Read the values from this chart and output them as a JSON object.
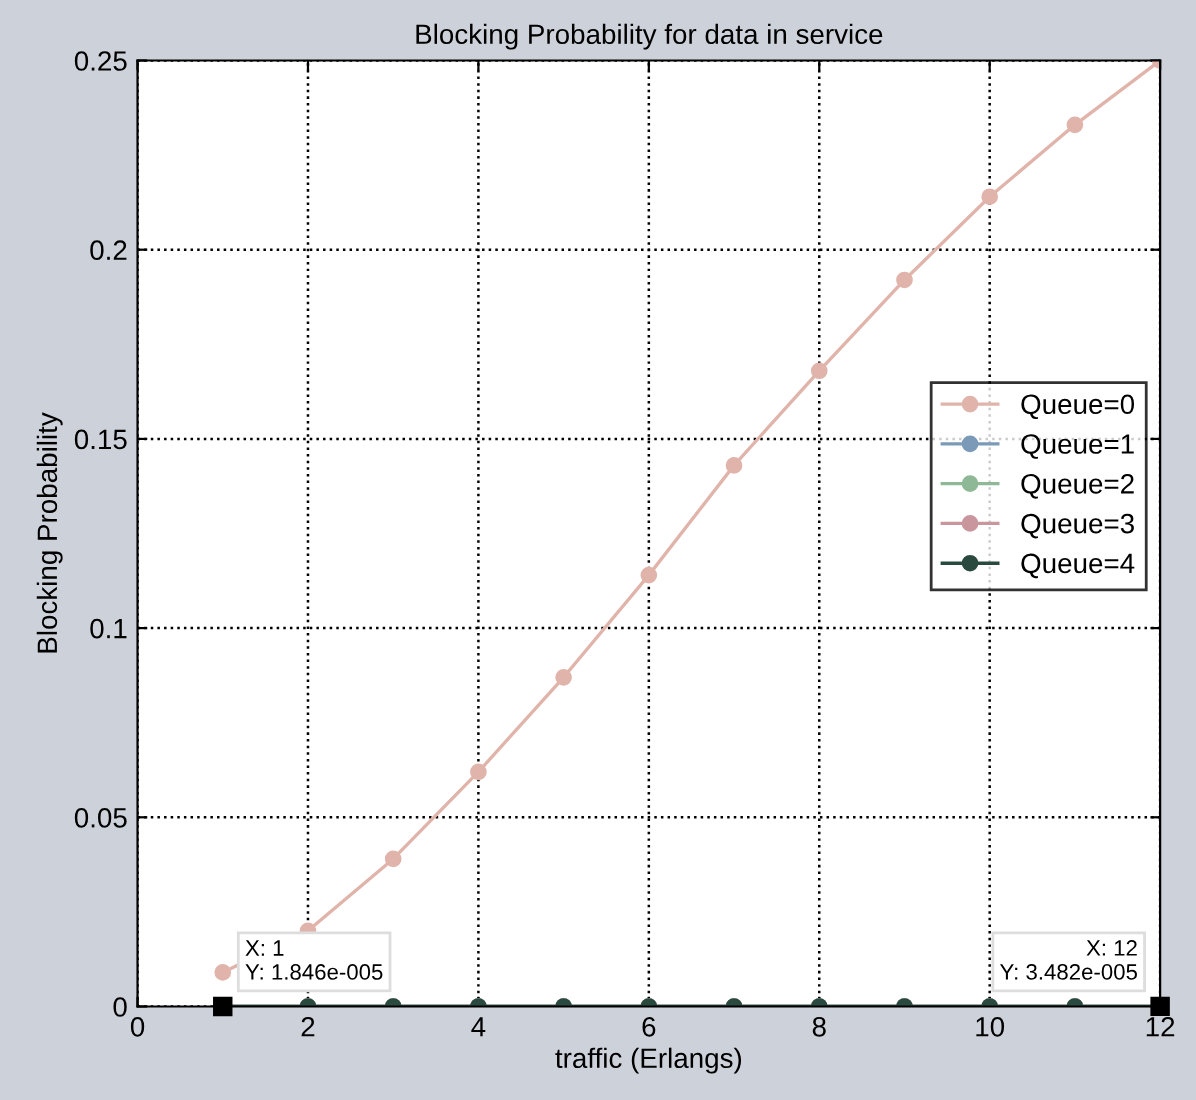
{
  "chart_data": {
    "type": "line",
    "title": "Blocking Probability for data in service",
    "xlabel": "traffic (Erlangs)",
    "ylabel": "Blocking Probability",
    "x": [
      1,
      2,
      3,
      4,
      5,
      6,
      7,
      8,
      9,
      10,
      11,
      12
    ],
    "series": [
      {
        "name": "Queue=0",
        "color": "#e0b4aa",
        "values": [
          0.009,
          0.02,
          0.039,
          0.062,
          0.087,
          0.114,
          0.143,
          0.168,
          0.192,
          0.214,
          0.233,
          0.25
        ]
      },
      {
        "name": "Queue=1",
        "color": "#7a9ab8",
        "values": [
          0,
          0,
          0,
          0,
          0,
          0,
          0,
          0,
          0,
          0,
          0,
          0
        ]
      },
      {
        "name": "Queue=2",
        "color": "#8fb896",
        "values": [
          0,
          0,
          0,
          0,
          0,
          0,
          0,
          0,
          0,
          0,
          0,
          0
        ]
      },
      {
        "name": "Queue=3",
        "color": "#c8969c",
        "values": [
          0,
          0,
          0,
          0,
          0,
          0,
          0,
          0,
          0,
          0,
          0,
          0
        ]
      },
      {
        "name": "Queue=4",
        "color": "#2a4a40",
        "values": [
          0,
          0,
          0,
          0,
          0,
          0,
          0,
          0,
          0,
          0,
          0,
          0
        ]
      }
    ],
    "annotations": [
      {
        "text": "X: 1\nY: 1.846e-005",
        "x": 1,
        "y": 1.846e-05
      },
      {
        "text": "X: 12\nY: 3.482e-005",
        "x": 12,
        "y": 3.482e-05
      }
    ],
    "xlim": [
      0,
      12
    ],
    "xticks": [
      0,
      2,
      4,
      6,
      8,
      10,
      12
    ],
    "ylim": [
      0,
      0.25
    ],
    "yticks": [
      0,
      0.05,
      0.1,
      0.15,
      0.2,
      0.25
    ],
    "grid": true,
    "legend": "right",
    "marker": "circle",
    "line_style": "solid"
  }
}
